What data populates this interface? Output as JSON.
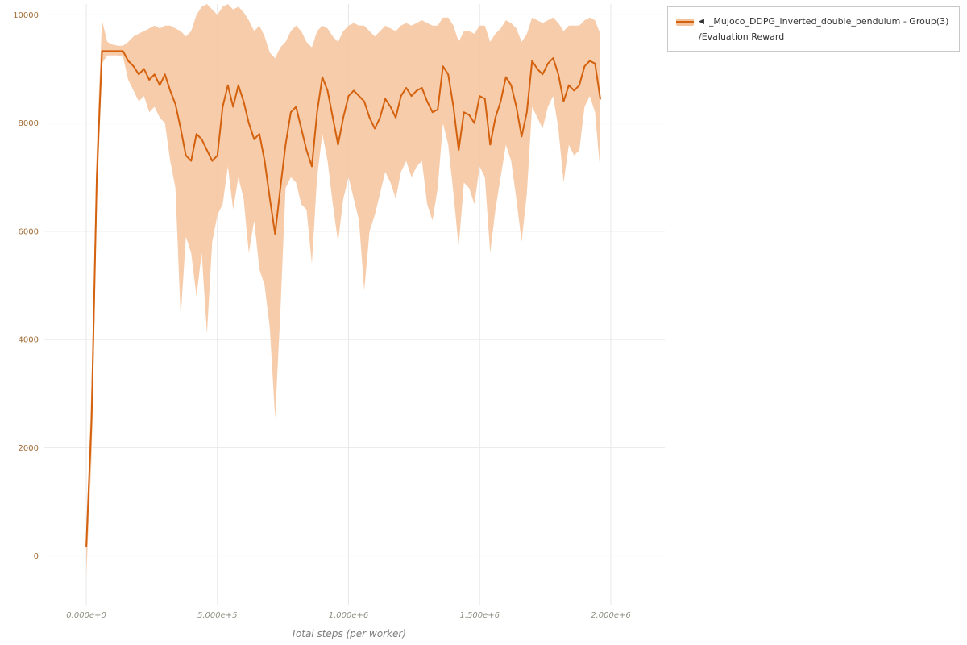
{
  "legend": {
    "collapse_icon": "◀",
    "series_label": "_Mujoco_DDPG_inverted_double_pendulum - Group(3)",
    "metric_label": "/Evaluation Reward"
  },
  "colors": {
    "line": "#d4610d",
    "band": "#f4c39c",
    "grid": "#e8e8e8",
    "x_tick_label": "#8f8f82",
    "y_tick_label": "#a06c36",
    "axis_title": "#7d7d7d",
    "legend_border": "#c9c9c9",
    "legend_text": "#333333",
    "background": "#ffffff"
  },
  "chart_data": {
    "type": "line",
    "title": "",
    "xlabel": "Total steps (per worker)",
    "ylabel": "",
    "legend_position": "top-right",
    "grid": true,
    "xlim": [
      -160000,
      2206000
    ],
    "ylim": [
      -900,
      10200
    ],
    "x_ticks": [
      {
        "value": 0,
        "label": "0.000e+0"
      },
      {
        "value": 500000,
        "label": "5.000e+5"
      },
      {
        "value": 1000000,
        "label": "1.000e+6"
      },
      {
        "value": 1500000,
        "label": "1.500e+6"
      },
      {
        "value": 2000000,
        "label": "2.000e+6"
      }
    ],
    "y_ticks": [
      {
        "value": 0,
        "label": "0"
      },
      {
        "value": 2000,
        "label": "2000"
      },
      {
        "value": 4000,
        "label": "4000"
      },
      {
        "value": 6000,
        "label": "6000"
      },
      {
        "value": 8000,
        "label": "8000"
      },
      {
        "value": 10000,
        "label": "10000"
      }
    ],
    "series": [
      {
        "name": "_Mujoco_DDPG_inverted_double_pendulum - Group(3) /Evaluation Reward",
        "x_start": 0,
        "x_step": 20000,
        "mean": [
          180,
          2500,
          7000,
          9330,
          9330,
          9330,
          9330,
          9330,
          9150,
          9050,
          8900,
          9000,
          8800,
          8900,
          8700,
          8900,
          8600,
          8350,
          7900,
          7400,
          7300,
          7800,
          7700,
          7500,
          7300,
          7400,
          8300,
          8700,
          8300,
          8700,
          8400,
          8000,
          7700,
          7800,
          7300,
          6600,
          5950,
          6800,
          7600,
          8200,
          8300,
          7900,
          7500,
          7200,
          8200,
          8850,
          8600,
          8100,
          7600,
          8100,
          8500,
          8600,
          8500,
          8400,
          8100,
          7900,
          8100,
          8450,
          8300,
          8100,
          8500,
          8650,
          8500,
          8600,
          8650,
          8400,
          8200,
          8250,
          9050,
          8900,
          8300,
          7500,
          8200,
          8150,
          8000,
          8500,
          8450,
          7600,
          8100,
          8400,
          8850,
          8700,
          8300,
          7750,
          8200,
          9150,
          9000,
          8900,
          9100,
          9200,
          8900,
          8400,
          8700,
          8600,
          8700,
          9050,
          9150,
          9100,
          8450
        ],
        "lower": [
          -350,
          1800,
          6400,
          9100,
          9250,
          9250,
          9250,
          9230,
          8800,
          8600,
          8400,
          8500,
          8200,
          8300,
          8100,
          8000,
          7300,
          6800,
          4400,
          5900,
          5600,
          4800,
          5600,
          4100,
          5800,
          6300,
          6500,
          7200,
          6400,
          7000,
          6600,
          5600,
          6200,
          5300,
          5000,
          4200,
          2550,
          4500,
          6800,
          7000,
          6900,
          6500,
          6400,
          5400,
          7000,
          7800,
          7300,
          6500,
          5800,
          6600,
          7000,
          6600,
          6200,
          4900,
          6000,
          6300,
          6700,
          7100,
          6900,
          6600,
          7100,
          7300,
          7000,
          7200,
          7300,
          6500,
          6200,
          6800,
          8000,
          7600,
          6700,
          5700,
          6900,
          6800,
          6500,
          7200,
          7000,
          5600,
          6400,
          7000,
          7600,
          7300,
          6600,
          5800,
          6700,
          8300,
          8100,
          7900,
          8300,
          8500,
          7900,
          6900,
          7600,
          7400,
          7500,
          8300,
          8500,
          8200,
          7100
        ],
        "upper": [
          400,
          3200,
          7600,
          9900,
          9500,
          9450,
          9430,
          9430,
          9500,
          9600,
          9650,
          9700,
          9750,
          9800,
          9750,
          9800,
          9800,
          9750,
          9700,
          9600,
          9700,
          10000,
          10150,
          10200,
          10100,
          10000,
          10150,
          10200,
          10100,
          10150,
          10050,
          9900,
          9700,
          9800,
          9600,
          9300,
          9200,
          9400,
          9500,
          9700,
          9800,
          9700,
          9500,
          9400,
          9700,
          9800,
          9750,
          9600,
          9500,
          9700,
          9800,
          9850,
          9800,
          9800,
          9700,
          9600,
          9700,
          9800,
          9750,
          9700,
          9800,
          9850,
          9800,
          9850,
          9900,
          9850,
          9800,
          9800,
          9950,
          9950,
          9800,
          9500,
          9700,
          9700,
          9650,
          9800,
          9800,
          9500,
          9650,
          9750,
          9900,
          9850,
          9750,
          9500,
          9650,
          9950,
          9900,
          9850,
          9900,
          9950,
          9850,
          9700,
          9800,
          9800,
          9800,
          9900,
          9950,
          9900,
          9650
        ]
      }
    ]
  }
}
